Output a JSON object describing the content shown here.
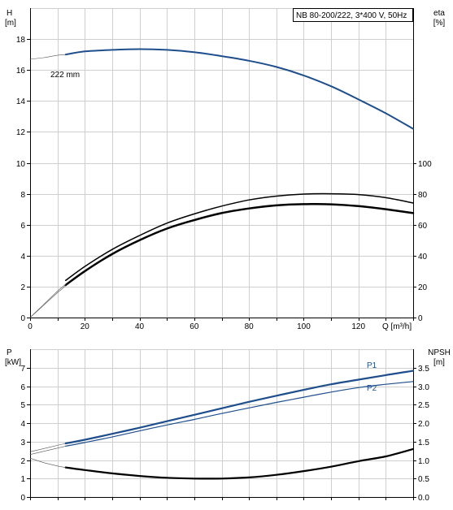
{
  "chart_data": [
    {
      "type": "line",
      "title": "NB 80-200/222, 3*400 V, 50Hz",
      "xlabel": "Q [m³/h]",
      "x_ticks": [
        0,
        20,
        40,
        60,
        80,
        100,
        120
      ],
      "xlim": [
        0,
        140
      ],
      "left_axis": {
        "label_line1": "H",
        "label_line2": "[m]",
        "ticks": [
          0,
          2,
          4,
          6,
          8,
          10,
          12,
          14,
          16,
          18
        ],
        "ylim": [
          0,
          20
        ]
      },
      "right_axis": {
        "label_line1": "eta",
        "label_line2": "[%]",
        "ticks": [
          0,
          20,
          40,
          60,
          80,
          100
        ],
        "ylim": [
          0,
          200
        ]
      },
      "annotations": [
        {
          "text": "222 mm"
        }
      ],
      "grid": true,
      "series": [
        {
          "key": "H",
          "axis": "left",
          "color": "#1f4e8c",
          "width": 2,
          "x": [
            13,
            20,
            30,
            40,
            50,
            60,
            70,
            80,
            90,
            100,
            110,
            120,
            130,
            140
          ],
          "y": [
            17.0,
            17.2,
            17.3,
            17.35,
            17.3,
            17.15,
            16.9,
            16.6,
            16.2,
            15.65,
            14.95,
            14.1,
            13.2,
            12.2
          ]
        },
        {
          "key": "H-extension",
          "axis": "left",
          "color": "#555555",
          "width": 0.6,
          "x": [
            0,
            5,
            10,
            13
          ],
          "y": [
            16.7,
            16.8,
            16.95,
            17.0
          ]
        },
        {
          "key": "eta-upper",
          "axis": "right",
          "color": "#000000",
          "width": 1.5,
          "x": [
            13,
            20,
            30,
            40,
            50,
            60,
            70,
            80,
            90,
            100,
            110,
            120,
            130,
            140
          ],
          "y": [
            24,
            33,
            44,
            53,
            61,
            67,
            72,
            76,
            78.5,
            79.8,
            80,
            79.5,
            77.5,
            74
          ]
        },
        {
          "key": "eta-lower",
          "axis": "right",
          "color": "#000000",
          "width": 2.5,
          "x": [
            13,
            20,
            30,
            40,
            50,
            60,
            70,
            80,
            90,
            100,
            110,
            120,
            130,
            140
          ],
          "y": [
            21,
            30,
            41,
            50,
            57.5,
            63,
            67.5,
            70.5,
            72.5,
            73.3,
            73.2,
            72,
            70,
            67.5
          ]
        },
        {
          "key": "eta-extension-1",
          "axis": "right",
          "color": "#555555",
          "width": 0.6,
          "x": [
            0,
            5,
            10,
            13
          ],
          "y": [
            0,
            8.5,
            17,
            21.5
          ]
        },
        {
          "key": "eta-extension-2",
          "axis": "right",
          "color": "#555555",
          "width": 0.6,
          "x": [
            0,
            5,
            10,
            13
          ],
          "y": [
            0,
            8,
            16,
            20.5
          ]
        }
      ]
    },
    {
      "type": "line",
      "xlim": [
        0,
        140
      ],
      "left_axis": {
        "label_line1": "P",
        "label_line2": "[kW]",
        "ticks": [
          0,
          1,
          2,
          3,
          4,
          5,
          6,
          7
        ],
        "ylim": [
          0,
          8
        ]
      },
      "right_axis": {
        "label_line1": "NPSH",
        "label_line2": "[m]",
        "ticks": [
          "0.0",
          "0.5",
          "1.0",
          "1.5",
          "2.0",
          "2.5",
          "3.0",
          "3.5"
        ],
        "ylim": [
          0,
          4
        ]
      },
      "grid": true,
      "legend": [
        {
          "text": "P1",
          "color": "#1f4e8c"
        },
        {
          "text": "P2",
          "color": "#1f4e8c"
        }
      ],
      "series": [
        {
          "key": "P1",
          "axis": "left",
          "color": "#1f4e8c",
          "width": 2.2,
          "x": [
            13,
            20,
            30,
            40,
            50,
            60,
            70,
            80,
            90,
            100,
            110,
            120,
            130,
            140
          ],
          "y": [
            2.9,
            3.1,
            3.42,
            3.75,
            4.1,
            4.45,
            4.8,
            5.15,
            5.48,
            5.8,
            6.1,
            6.35,
            6.6,
            6.83
          ]
        },
        {
          "key": "P1-extension",
          "axis": "left",
          "color": "#555555",
          "width": 0.6,
          "x": [
            0,
            13
          ],
          "y": [
            2.45,
            2.9
          ]
        },
        {
          "key": "P2",
          "axis": "left",
          "color": "#1f4e8c",
          "width": 1.2,
          "x": [
            13,
            20,
            30,
            40,
            50,
            60,
            70,
            80,
            90,
            100,
            110,
            120,
            130,
            140
          ],
          "y": [
            2.75,
            2.95,
            3.25,
            3.58,
            3.9,
            4.2,
            4.52,
            4.82,
            5.12,
            5.4,
            5.68,
            5.92,
            6.1,
            6.25
          ]
        },
        {
          "key": "P2-extension",
          "axis": "left",
          "color": "#555555",
          "width": 0.6,
          "x": [
            0,
            13
          ],
          "y": [
            2.3,
            2.75
          ]
        },
        {
          "key": "NPSH",
          "axis": "right",
          "color": "#000000",
          "width": 2.2,
          "x": [
            13,
            20,
            30,
            40,
            50,
            60,
            70,
            80,
            90,
            100,
            110,
            120,
            130,
            140
          ],
          "y": [
            0.8,
            0.73,
            0.64,
            0.57,
            0.52,
            0.5,
            0.5,
            0.53,
            0.6,
            0.7,
            0.82,
            0.97,
            1.1,
            1.3
          ]
        },
        {
          "key": "NPSH-extension",
          "axis": "right",
          "color": "#555555",
          "width": 0.6,
          "x": [
            0,
            5,
            10,
            13
          ],
          "y": [
            1.05,
            0.93,
            0.84,
            0.8
          ]
        }
      ]
    }
  ]
}
